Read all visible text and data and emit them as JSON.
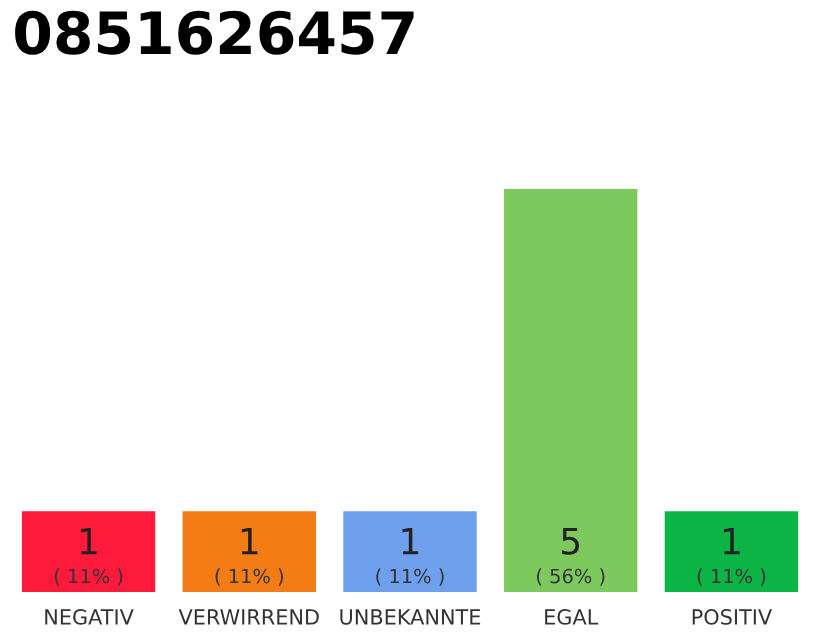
{
  "chart_data": {
    "type": "bar",
    "title": "0851626457",
    "categories": [
      "NEGATIV",
      "VERWIRREND",
      "UNBEKANNTE",
      "EGAL",
      "POSITIV"
    ],
    "values": [
      1,
      1,
      1,
      5,
      1
    ],
    "colors": [
      "#ff1a3c",
      "#f47c14",
      "#6ea0ee",
      "#7dc95e",
      "#0cb446"
    ],
    "data_labels": true,
    "annotations": [
      "( 11% )",
      "( 11% )",
      "( 11% )",
      "( 56% )",
      "( 11% )"
    ],
    "grid": false,
    "legend": false
  }
}
